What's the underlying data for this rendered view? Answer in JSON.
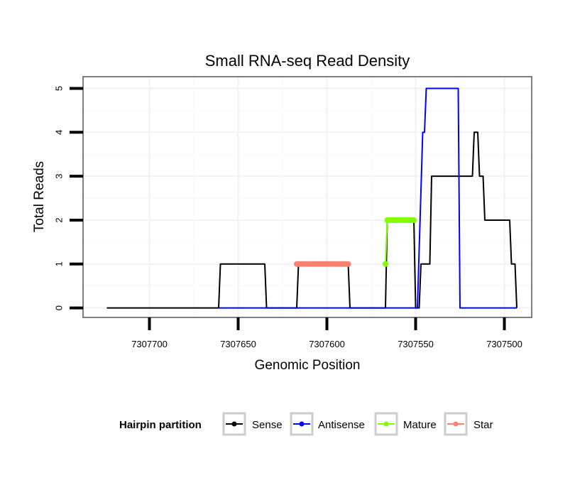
{
  "chart_data": {
    "type": "line",
    "title": "Small RNA-seq Read Density",
    "xlabel": "Genomic Position",
    "ylabel": "Total Reads",
    "x_reversed": true,
    "xlim": [
      7307737,
      7307485
    ],
    "ylim": [
      -0.2,
      5.25
    ],
    "x_ticks": [
      7307700,
      7307650,
      7307600,
      7307550,
      7307500
    ],
    "x_tick_labels": [
      "7307700",
      "7307650",
      "7307600",
      "7307550",
      "7307500"
    ],
    "y_ticks": [
      0,
      1,
      2,
      3,
      4,
      5
    ],
    "y_tick_labels": [
      "0",
      "1",
      "2",
      "3",
      "4",
      "5"
    ],
    "grid": true,
    "legend": {
      "title": "Hairpin partition",
      "placement": "bottom",
      "entries": [
        {
          "label": "Sense",
          "color": "#000000"
        },
        {
          "label": "Antisense",
          "color": "#0000ff"
        },
        {
          "label": "Mature",
          "color": "#7fff00"
        },
        {
          "label": "Star",
          "color": "#fa8072"
        }
      ]
    },
    "series": [
      {
        "name": "Sense",
        "color": "#000000",
        "style": "line",
        "x": [
          7307724,
          7307661,
          7307660,
          7307635,
          7307634,
          7307617,
          7307616,
          7307588,
          7307587,
          7307567,
          7307566,
          7307551,
          7307550,
          7307548,
          7307547,
          7307542,
          7307541,
          7307536,
          7307535,
          7307518,
          7307517,
          7307515,
          7307514,
          7307512,
          7307511,
          7307507,
          7307506,
          7307497,
          7307496,
          7307494,
          7307493
        ],
        "y": [
          0,
          0,
          1,
          1,
          0,
          0,
          1,
          1,
          0,
          0,
          2,
          2,
          0,
          0,
          1,
          1,
          3,
          3,
          3,
          3,
          4,
          4,
          3,
          3,
          2,
          2,
          2,
          2,
          1,
          1,
          0
        ]
      },
      {
        "name": "Antisense",
        "color": "#0000ff",
        "style": "line",
        "x": [
          7307661,
          7307550,
          7307549,
          7307546,
          7307545,
          7307544,
          7307526,
          7307525,
          7307493
        ],
        "y": [
          0,
          0,
          0,
          4,
          4,
          5,
          5,
          0,
          0
        ]
      },
      {
        "name": "Mature",
        "color": "#7fff00",
        "style": "points",
        "x": [
          7307567,
          7307566,
          7307565,
          7307564,
          7307563,
          7307562,
          7307561,
          7307560,
          7307559,
          7307558,
          7307557,
          7307556,
          7307555,
          7307554,
          7307553,
          7307552,
          7307551
        ],
        "y": [
          1,
          2,
          2,
          2,
          2,
          2,
          2,
          2,
          2,
          2,
          2,
          2,
          2,
          2,
          2,
          2,
          2
        ]
      },
      {
        "name": "Star",
        "color": "#fa8072",
        "style": "points",
        "x": [
          7307617,
          7307616,
          7307615,
          7307614,
          7307613,
          7307612,
          7307611,
          7307610,
          7307609,
          7307608,
          7307607,
          7307606,
          7307605,
          7307604,
          7307603,
          7307602,
          7307601,
          7307600,
          7307599,
          7307598,
          7307597,
          7307596,
          7307595,
          7307594,
          7307593,
          7307592,
          7307591,
          7307590,
          7307589,
          7307588
        ],
        "y": [
          1,
          1,
          1,
          1,
          1,
          1,
          1,
          1,
          1,
          1,
          1,
          1,
          1,
          1,
          1,
          1,
          1,
          1,
          1,
          1,
          1,
          1,
          1,
          1,
          1,
          1,
          1,
          1,
          1,
          1
        ]
      }
    ]
  }
}
